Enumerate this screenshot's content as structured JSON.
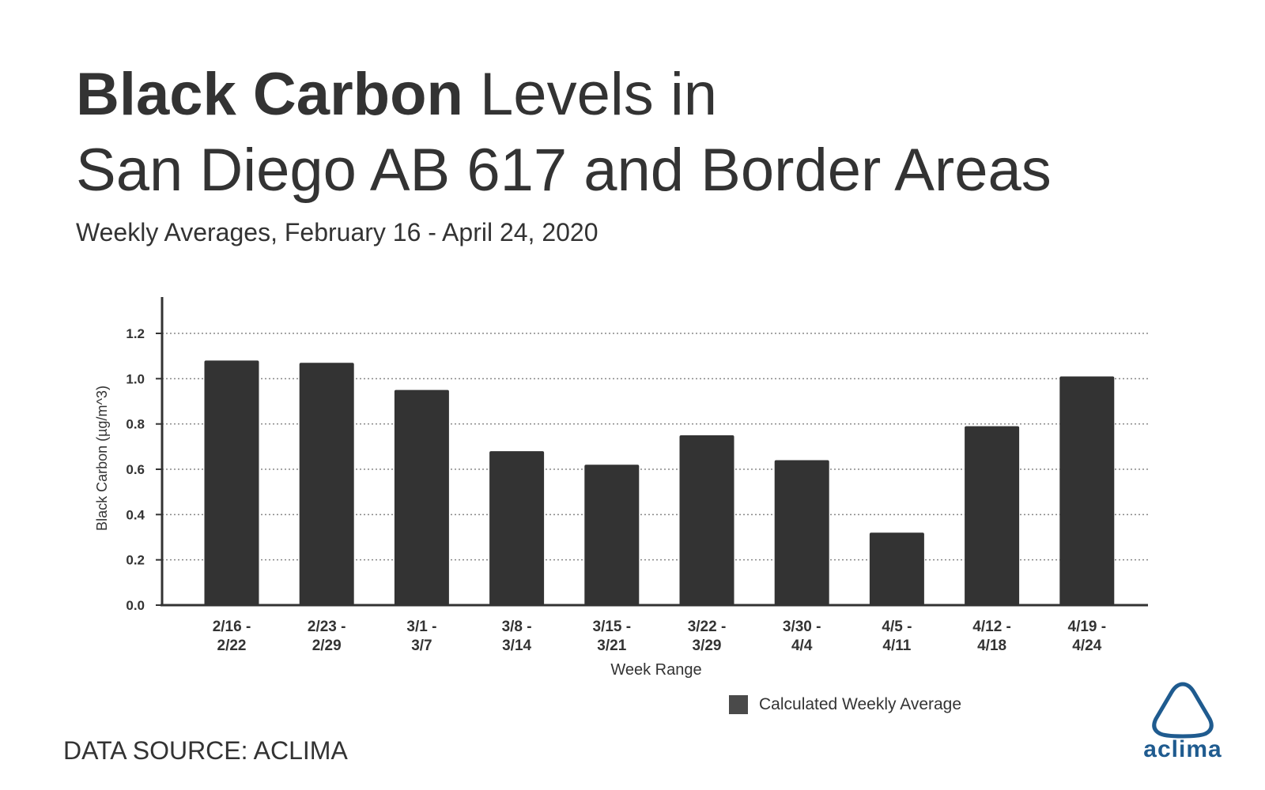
{
  "title": {
    "bold": "Black Carbon",
    "rest_line1": " Levels in",
    "line2": "San Diego AB 617 and Border Areas"
  },
  "subtitle": "Weekly Averages, February 16 - April 24, 2020",
  "source": "DATA SOURCE: ACLIMA",
  "logo": {
    "text": "aclima",
    "color": "#1f5b8f"
  },
  "chart_data": {
    "type": "bar",
    "categories": [
      [
        "2/16 -",
        "2/22"
      ],
      [
        "2/23 -",
        "2/29"
      ],
      [
        "3/1 -",
        "3/7"
      ],
      [
        "3/8 -",
        "3/14"
      ],
      [
        "3/15 -",
        "3/21"
      ],
      [
        "3/22 -",
        "3/29"
      ],
      [
        "3/30 -",
        "4/4"
      ],
      [
        "4/5 -",
        "4/11"
      ],
      [
        "4/12 -",
        "4/18"
      ],
      [
        "4/19 -",
        "4/24"
      ]
    ],
    "series": [
      {
        "name": "Calculated Weekly Average",
        "values": [
          1.08,
          1.07,
          0.95,
          0.68,
          0.62,
          0.75,
          0.64,
          0.32,
          0.79,
          1.01
        ],
        "color": "#333333"
      }
    ],
    "xlabel": "Week Range",
    "ylabel": "Black Carbon (µg/m^3)",
    "ylim": [
      0,
      1.2
    ],
    "yticks": [
      "0.0",
      "0.2",
      "0.4",
      "0.6",
      "0.8",
      "1.0",
      "1.2"
    ],
    "ytick_values": [
      0,
      0.2,
      0.4,
      0.6,
      0.8,
      1.0,
      1.2
    ],
    "grid": true,
    "legend_position": "bottom-right"
  }
}
